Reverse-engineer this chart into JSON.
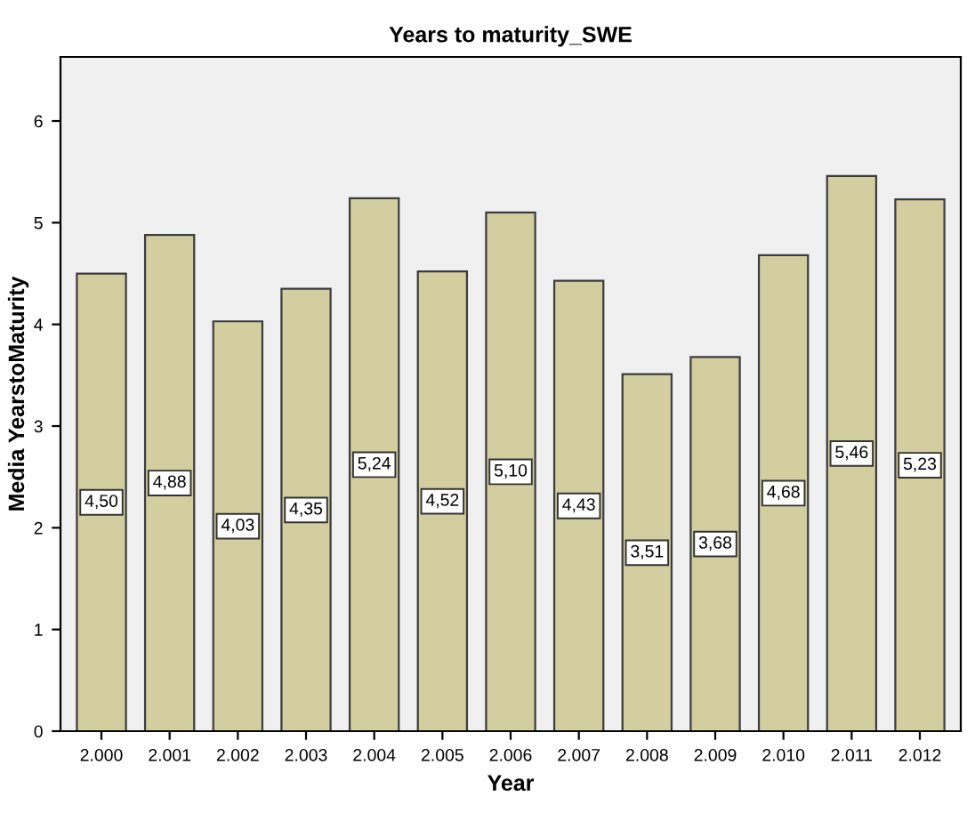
{
  "chart_data": {
    "type": "bar",
    "title": "Years to maturity_SWE",
    "xlabel": "Year",
    "ylabel": "Media YearstoMaturity",
    "categories": [
      "2.000",
      "2.001",
      "2.002",
      "2.003",
      "2.004",
      "2.005",
      "2.006",
      "2.007",
      "2.008",
      "2.009",
      "2.010",
      "2.011",
      "2.012"
    ],
    "values": [
      4.5,
      4.88,
      4.03,
      4.35,
      5.24,
      4.52,
      5.1,
      4.43,
      3.51,
      3.68,
      4.68,
      5.46,
      5.23
    ],
    "value_labels": [
      "4,50",
      "4,88",
      "4,03",
      "4,35",
      "5,24",
      "4,52",
      "5,10",
      "4,43",
      "3,51",
      "3,68",
      "4,68",
      "5,46",
      "5,23"
    ],
    "color": "#d3cea0",
    "ylim": [
      0,
      6.63
    ],
    "yticks": [
      0,
      1,
      2,
      3,
      4,
      5,
      6
    ],
    "grid": false
  }
}
